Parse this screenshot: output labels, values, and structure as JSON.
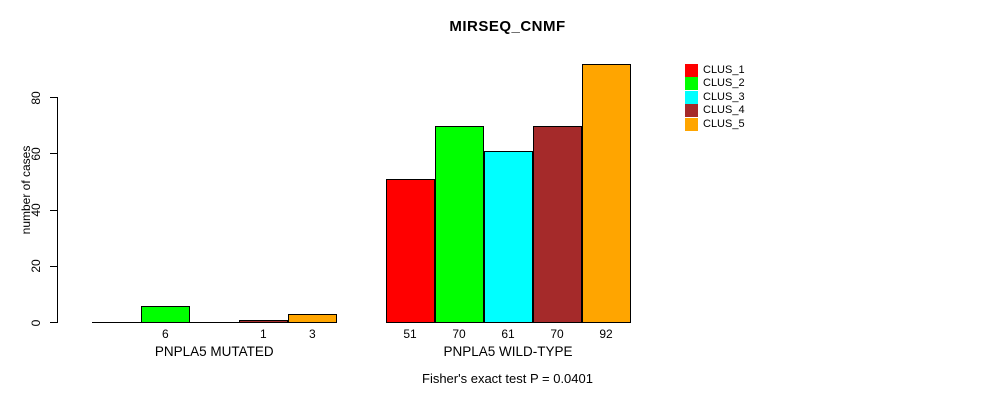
{
  "title": "MIRSEQ_CNMF",
  "y_axis": {
    "label": "number of cases",
    "ticks": [
      0,
      20,
      40,
      60,
      80
    ]
  },
  "footer_note": "Fisher's exact test P = 0.0401",
  "legend": {
    "items": [
      {
        "label": "CLUS_1",
        "color": "#FF0000"
      },
      {
        "label": "CLUS_2",
        "color": "#00FF00"
      },
      {
        "label": "CLUS_3",
        "color": "#00FFFF"
      },
      {
        "label": "CLUS_4",
        "color": "#A52A2A"
      },
      {
        "label": "CLUS_5",
        "color": "#FFA500"
      }
    ]
  },
  "chart_data": {
    "type": "bar",
    "title": "MIRSEQ_CNMF",
    "categories": [
      "PNPLA5 MUTATED",
      "PNPLA5 WILD-TYPE"
    ],
    "series": [
      {
        "name": "CLUS_1",
        "color": "#FF0000",
        "values": [
          0,
          51
        ]
      },
      {
        "name": "CLUS_2",
        "color": "#00FF00",
        "values": [
          6,
          70
        ]
      },
      {
        "name": "CLUS_3",
        "color": "#00FFFF",
        "values": [
          0,
          61
        ]
      },
      {
        "name": "CLUS_4",
        "color": "#A52A2A",
        "values": [
          1,
          70
        ]
      },
      {
        "name": "CLUS_5",
        "color": "#FFA500",
        "values": [
          3,
          92
        ]
      }
    ],
    "value_labels": [
      [
        "",
        "6",
        "",
        "1",
        "3"
      ],
      [
        "51",
        "70",
        "61",
        "70",
        "92"
      ]
    ],
    "xlabel": "",
    "ylabel": "number of cases",
    "ylim": [
      0,
      95
    ],
    "grid": false,
    "legend_position": "right",
    "annotation": "Fisher's exact test P = 0.0401"
  }
}
